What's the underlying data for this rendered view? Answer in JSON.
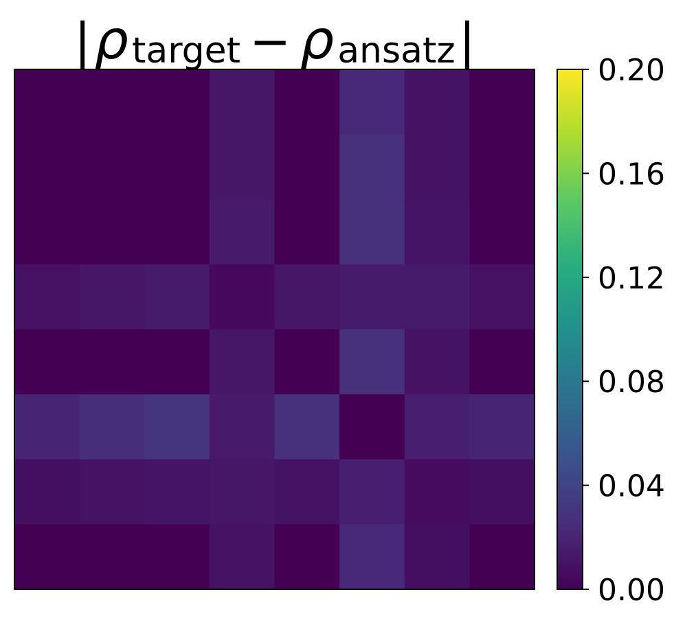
{
  "chart_data": {
    "type": "heatmap",
    "title": {
      "left_bar": "|",
      "symbol_1": "ρ",
      "subscript_1": "target",
      "minus": "−",
      "symbol_2": "ρ",
      "subscript_2": "ansatz",
      "right_bar": "|"
    },
    "xlabel": "",
    "ylabel": "",
    "rows": 8,
    "cols": 8,
    "values": [
      [
        0.0,
        0.0,
        0.0,
        0.012,
        0.0,
        0.022,
        0.01,
        0.0
      ],
      [
        0.0,
        0.0,
        0.0,
        0.012,
        0.0,
        0.028,
        0.01,
        0.0
      ],
      [
        0.0,
        0.0,
        0.0,
        0.014,
        0.0,
        0.028,
        0.011,
        0.0
      ],
      [
        0.009,
        0.012,
        0.015,
        0.004,
        0.012,
        0.015,
        0.015,
        0.009
      ],
      [
        0.0,
        0.0,
        0.0,
        0.012,
        0.0,
        0.028,
        0.01,
        0.0
      ],
      [
        0.02,
        0.026,
        0.03,
        0.014,
        0.028,
        0.0,
        0.017,
        0.02
      ],
      [
        0.008,
        0.01,
        0.011,
        0.012,
        0.01,
        0.017,
        0.006,
        0.008
      ],
      [
        0.0,
        0.0,
        0.0,
        0.01,
        0.0,
        0.022,
        0.008,
        0.0
      ]
    ],
    "colormap": "viridis",
    "colorbar": {
      "min": 0.0,
      "max": 0.2,
      "ticks": [
        {
          "value": 0.0,
          "label": "0.00"
        },
        {
          "value": 0.04,
          "label": "0.04"
        },
        {
          "value": 0.08,
          "label": "0.08"
        },
        {
          "value": 0.12,
          "label": "0.12"
        },
        {
          "value": 0.16,
          "label": "0.16"
        },
        {
          "value": 0.2,
          "label": "0.20"
        }
      ]
    },
    "grid": false
  }
}
